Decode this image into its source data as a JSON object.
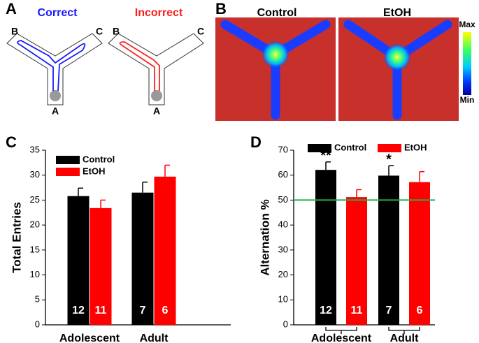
{
  "panel_labels": [
    "A",
    "B",
    "C",
    "D"
  ],
  "panel_a": {
    "correct": "Correct",
    "incorrect": "Incorrect",
    "arm_labels": [
      "A",
      "B",
      "C"
    ]
  },
  "panel_b": {
    "titles": [
      "Control",
      "EtOH"
    ],
    "colorbar": {
      "max": "Max",
      "min": "Min"
    }
  },
  "chart_data": [
    {
      "type": "bar",
      "ylabel": "Total Entries",
      "categories": [
        "Adolescent",
        "Adult"
      ],
      "series": [
        {
          "name": "Control",
          "color": "#000000",
          "values": [
            25.8,
            26.5
          ],
          "errors": [
            1.6,
            2.1
          ],
          "n": [
            12,
            7
          ]
        },
        {
          "name": "EtOH",
          "color": "#ff0000",
          "values": [
            23.4,
            29.7
          ],
          "errors": [
            1.6,
            2.3
          ],
          "n": [
            11,
            6
          ]
        }
      ],
      "ylim": [
        0,
        35
      ],
      "yticks": [
        0,
        5,
        10,
        15,
        20,
        25,
        30,
        35
      ],
      "legend": "upper-left"
    },
    {
      "type": "bar",
      "ylabel": "Alternation %",
      "categories": [
        "Adolescent",
        "Adult"
      ],
      "series": [
        {
          "name": "Control",
          "color": "#000000",
          "values": [
            62.1,
            59.8
          ],
          "errors": [
            3.2,
            4.0
          ],
          "n": [
            12,
            7
          ],
          "significance": [
            "**",
            "*"
          ]
        },
        {
          "name": "EtOH",
          "color": "#ff0000",
          "values": [
            51.2,
            57.2
          ],
          "errors": [
            3.0,
            4.2
          ],
          "n": [
            11,
            6
          ]
        }
      ],
      "ylim": [
        0,
        70
      ],
      "yticks": [
        0,
        10,
        20,
        30,
        40,
        50,
        60,
        70
      ],
      "reference_line": {
        "value": 50,
        "color": "#22b14c"
      },
      "legend": "top"
    }
  ]
}
